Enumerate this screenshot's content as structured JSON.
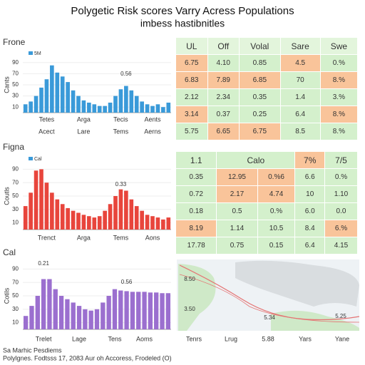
{
  "title": "Polygetic Risk scores Varry Acress Populations",
  "subtitle": "imbess hastibnitles",
  "chart_data": [
    {
      "type": "bar",
      "title": "Frone",
      "y_label": "Cants",
      "legend": "5M",
      "legend_color": "#3a9ad9",
      "color": "#3a9ad9",
      "grid": true,
      "annotations": [
        "0.56"
      ],
      "categories": [
        null,
        null,
        null,
        null,
        "Tetes",
        null,
        null,
        null,
        null,
        null,
        null,
        "Arga",
        null,
        null,
        null,
        null,
        null,
        null,
        "Tecis",
        null,
        null,
        null,
        null,
        null,
        "Aents",
        null,
        null,
        null
      ],
      "x_sublabels": [
        "Acect",
        "Lare",
        "Tems",
        "Aerns"
      ],
      "values": [
        15,
        20,
        30,
        45,
        60,
        85,
        72,
        65,
        55,
        40,
        30,
        22,
        18,
        15,
        12,
        12,
        18,
        30,
        42,
        48,
        40,
        30,
        20,
        15,
        12,
        15,
        10,
        18
      ],
      "ylim": [
        0,
        100
      ],
      "yticks": [
        10,
        30,
        50,
        70,
        90
      ]
    },
    {
      "type": "bar",
      "title": "Figna",
      "y_label": "Coutls",
      "legend": "Cal",
      "legend_color": "#3a9ad9",
      "color": "#e8453c",
      "grid": true,
      "annotations": [
        "0.33"
      ],
      "categories": [
        null,
        null,
        null,
        null,
        "Trenct",
        null,
        null,
        null,
        null,
        null,
        null,
        "Arga",
        null,
        null,
        null,
        null,
        null,
        null,
        "Tems",
        null,
        null,
        null,
        null,
        null,
        "Aons",
        null,
        null,
        null
      ],
      "x_sublabels": [],
      "values": [
        35,
        55,
        88,
        90,
        70,
        55,
        45,
        38,
        32,
        28,
        25,
        22,
        20,
        18,
        20,
        28,
        38,
        50,
        60,
        58,
        45,
        35,
        28,
        22,
        20,
        18,
        15,
        18
      ],
      "ylim": [
        0,
        100
      ],
      "yticks": [
        10,
        30,
        50,
        70,
        90
      ]
    },
    {
      "type": "bar",
      "title": "Cal",
      "y_label": "Cotils",
      "legend": null,
      "legend_color": null,
      "color": "#9b6fcf",
      "grid": true,
      "annotations": [
        "0.21",
        "0.56"
      ],
      "categories": [
        null,
        null,
        null,
        "Trelet",
        null,
        null,
        null,
        null,
        null,
        "Lage",
        null,
        null,
        null,
        null,
        null,
        "Tens",
        null,
        null,
        null,
        null,
        "Aoms",
        null,
        null,
        null,
        null
      ],
      "x_sublabels": [],
      "values": [
        20,
        35,
        50,
        75,
        75,
        60,
        50,
        45,
        40,
        35,
        30,
        28,
        30,
        40,
        50,
        60,
        58,
        57,
        56,
        56,
        56,
        55,
        55,
        54,
        54
      ],
      "ylim": [
        0,
        100
      ],
      "yticks": [
        10,
        30,
        50,
        70,
        90
      ]
    }
  ],
  "tables": [
    {
      "header": [
        "UL",
        "Off",
        "Volal",
        "Sare",
        "Swe"
      ],
      "header_colors": [
        "#e3f5dc",
        "#e3f5dc",
        "#e3f5dc",
        "#e3f5dc",
        "#e3f5dc"
      ],
      "rows": [
        [
          "6.75",
          "4.10",
          "0.85",
          "4.5",
          "0.%"
        ],
        [
          "6.83",
          "7.89",
          "6.85",
          "70",
          "8.%"
        ],
        [
          "2.12",
          "2.34",
          "0.35",
          "1.4",
          "3.%"
        ],
        [
          "3.14",
          "0.37",
          "0.25",
          "6.4",
          "8.%"
        ],
        [
          "5.75",
          "6.65",
          "6.75",
          "8.5",
          "8.%"
        ]
      ],
      "cell_colors": [
        [
          "#f9c49a",
          "#d4f0cc",
          "#d4f0cc",
          "#f9c49a",
          "#d4f0cc"
        ],
        [
          "#f9c49a",
          "#f9c49a",
          "#f9c49a",
          "#d4f0cc",
          "#f9c49a"
        ],
        [
          "#d4f0cc",
          "#d4f0cc",
          "#d4f0cc",
          "#d4f0cc",
          "#d4f0cc"
        ],
        [
          "#f9c49a",
          "#d4f0cc",
          "#d4f0cc",
          "#d4f0cc",
          "#f9c49a"
        ],
        [
          "#d4f0cc",
          "#f9c49a",
          "#f9c49a",
          "#d4f0cc",
          "#d4f0cc"
        ]
      ]
    },
    {
      "header": [
        "1.1",
        "Calo",
        "7%",
        "7/5"
      ],
      "header_colors": [
        "#d4f0cc",
        "#d4f0cc",
        "#f9c49a",
        "#d4f0cc"
      ],
      "rows": [
        [
          "0.35",
          "12.95",
          "0.%6",
          "6.6",
          "0.%"
        ],
        [
          "0.72",
          "2.17",
          "4.74",
          "10",
          "1.10"
        ],
        [
          "0.18",
          "0.5",
          "0.%",
          "6.0",
          "0.0"
        ],
        [
          "8.19",
          "1.14",
          "10.5",
          "8.4",
          "6.%"
        ],
        [
          "17.78",
          "0.75",
          "0.15",
          "6.4",
          "4.15"
        ]
      ],
      "cell_colors": [
        [
          "#d4f0cc",
          "#f9c49a",
          "#f9c49a",
          "#d4f0cc",
          "#d4f0cc"
        ],
        [
          "#d4f0cc",
          "#f9c49a",
          "#f9c49a",
          "#d4f0cc",
          "#d4f0cc"
        ],
        [
          "#d4f0cc",
          "#d4f0cc",
          "#d4f0cc",
          "#d4f0cc",
          "#d4f0cc"
        ],
        [
          "#f9c49a",
          "#d4f0cc",
          "#d4f0cc",
          "#d4f0cc",
          "#f9c49a"
        ],
        [
          "#d4f0cc",
          "#d4f0cc",
          "#d4f0cc",
          "#d4f0cc",
          "#d4f0cc"
        ]
      ]
    }
  ],
  "map": {
    "labels": [
      "8.50",
      "3.50",
      "5.34",
      "5.25"
    ],
    "x_labels": [
      "Tenrs",
      "Lrug",
      "5.88",
      "Yars",
      "Yane"
    ]
  },
  "footer": [
    "Sa Marhic Pesdiems",
    "Polylgnes. Fodtsss 17, 2083 Aur oh Accoress, Frodeled (O)"
  ]
}
